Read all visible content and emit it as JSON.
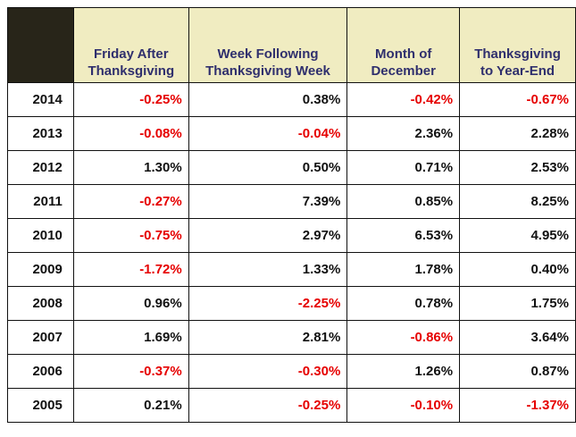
{
  "chart_data": {
    "type": "table",
    "columns": [
      "",
      "Friday After Thanksgiving",
      "Week Following Thanksgiving Week",
      "Month of December",
      "Thanksgiving to Year-End"
    ],
    "header_lines": [
      [
        "",
        ""
      ],
      [
        "Friday After",
        "Thanksgiving"
      ],
      [
        "Week Following",
        "Thanksgiving Week"
      ],
      [
        "Month of",
        "December"
      ],
      [
        "Thanksgiving",
        "to Year-End"
      ]
    ],
    "rows": [
      [
        "2014",
        "-0.25%",
        "0.38%",
        "-0.42%",
        "-0.67%"
      ],
      [
        "2013",
        "-0.08%",
        "-0.04%",
        "2.36%",
        "2.28%"
      ],
      [
        "2012",
        "1.30%",
        "0.50%",
        "0.71%",
        "2.53%"
      ],
      [
        "2011",
        "-0.27%",
        "7.39%",
        "0.85%",
        "8.25%"
      ],
      [
        "2010",
        "-0.75%",
        "2.97%",
        "6.53%",
        "4.95%"
      ],
      [
        "2009",
        "-1.72%",
        "1.33%",
        "1.78%",
        "0.40%"
      ],
      [
        "2008",
        "0.96%",
        "-2.25%",
        "0.78%",
        "1.75%"
      ],
      [
        "2007",
        "1.69%",
        "2.81%",
        "-0.86%",
        "3.64%"
      ],
      [
        "2006",
        "-0.37%",
        "-0.30%",
        "1.26%",
        "0.87%"
      ],
      [
        "2005",
        "0.21%",
        "-0.25%",
        "-0.10%",
        "-1.37%"
      ]
    ],
    "colors": {
      "header_background": "#f0ecc1",
      "header_text": "#2f2f6d",
      "corner_background": "#282519",
      "negative_text": "#e60000",
      "positive_text": "#111111"
    }
  }
}
